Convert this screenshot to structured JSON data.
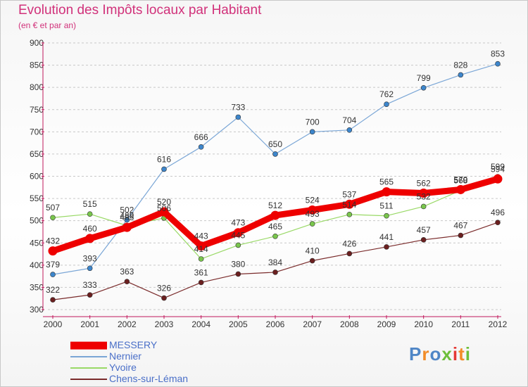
{
  "title": "Evolution des Impôts locaux par Habitant",
  "subtitle": "(en € et par an)",
  "logo": {
    "text": "Proxiti",
    "letter_colors": [
      "#4f86c6",
      "#f28c28",
      "#4f86c6",
      "#6cbf3a",
      "#e53935",
      "#f28c28",
      "#6cbf3a"
    ]
  },
  "colors": {
    "title": "#d1317a",
    "axis": "#c0185b",
    "grid": "#c8c8c8",
    "tick_label": "#333333",
    "legend_label": "#4a6fc8"
  },
  "chart_data": {
    "type": "line",
    "title": "Evolution des Impôts locaux par Habitant",
    "subtitle": "(en € et par an)",
    "xlabel": "",
    "ylabel": "",
    "x": [
      "2000",
      "2001",
      "2002",
      "2003",
      "2004",
      "2005",
      "2006",
      "2007",
      "2008",
      "2009",
      "2010",
      "2011",
      "2012"
    ],
    "ylim": [
      300,
      900
    ],
    "yticks": [
      300,
      350,
      400,
      450,
      500,
      550,
      600,
      650,
      700,
      750,
      800,
      850,
      900
    ],
    "grid": "horizontal dashed",
    "legend_position": "bottom-left",
    "series": [
      {
        "name": "Nernier",
        "color": "#7aa6d6",
        "marker_color": "#3d86cc",
        "width": 1.2,
        "marker": 3.5,
        "values": [
          379,
          393,
          502,
          616,
          666,
          733,
          650,
          700,
          704,
          762,
          799,
          828,
          853
        ]
      },
      {
        "name": "Yvoire",
        "color": "#99d966",
        "marker_color": "#79c64c",
        "width": 1.2,
        "marker": 3.5,
        "values": [
          507,
          515,
          489,
          506,
          414,
          445,
          465,
          493,
          514,
          511,
          532,
          568,
          599
        ]
      },
      {
        "name": "Chens-sur-Léman",
        "color": "#7a2b2b",
        "marker_color": "#6b1f1f",
        "width": 1.2,
        "marker": 3.5,
        "values": [
          322,
          333,
          363,
          326,
          361,
          380,
          384,
          410,
          426,
          441,
          457,
          467,
          496
        ]
      },
      {
        "name": "MESSERY",
        "color": "#ee0000",
        "marker_color": "#ee0000",
        "width": 9,
        "marker": 6.5,
        "values": [
          432,
          460,
          485,
          520,
          443,
          473,
          512,
          524,
          537,
          565,
          562,
          570,
          594
        ]
      }
    ]
  },
  "legend_order": [
    "MESSERY",
    "Nernier",
    "Yvoire",
    "Chens-sur-Léman"
  ]
}
